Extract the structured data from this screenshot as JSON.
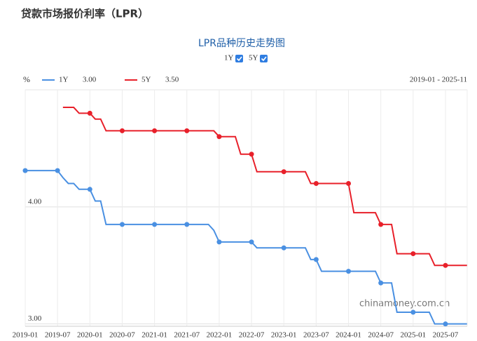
{
  "page_title": "贷款市场报价利率（LPR）",
  "chart_data": {
    "type": "line",
    "title": "LPR品种历史走势图",
    "y_unit": "%",
    "range_label": "2019-01 - 2025-11",
    "watermark": "chinamoney.com.cn",
    "categories": [
      "2019-01",
      null,
      null,
      null,
      null,
      null,
      "2019-07",
      null,
      null,
      null,
      null,
      null,
      "2020-01",
      null,
      null,
      null,
      null,
      null,
      "2020-07",
      null,
      null,
      null,
      null,
      null,
      "2021-01",
      null,
      null,
      null,
      null,
      null,
      "2021-07",
      null,
      null,
      null,
      null,
      null,
      "2022-01",
      null,
      null,
      null,
      null,
      null,
      "2022-07",
      null,
      null,
      null,
      null,
      null,
      "2023-01",
      null,
      null,
      null,
      null,
      null,
      "2023-07",
      null,
      null,
      null,
      null,
      null,
      "2024-01",
      null,
      null,
      null,
      null,
      null,
      "2024-07",
      null,
      null,
      null,
      null,
      null,
      "2025-01",
      null,
      null,
      null,
      null,
      null,
      "2025-07",
      null,
      null,
      null,
      null
    ],
    "series": [
      {
        "name": "1Y",
        "color": "#4a90e2",
        "current": "3.00",
        "values": [
          4.31,
          4.31,
          4.31,
          4.31,
          4.31,
          4.31,
          4.31,
          4.25,
          4.2,
          4.2,
          4.15,
          4.15,
          4.15,
          4.05,
          4.05,
          3.85,
          3.85,
          3.85,
          3.85,
          3.85,
          3.85,
          3.85,
          3.85,
          3.85,
          3.85,
          3.85,
          3.85,
          3.85,
          3.85,
          3.85,
          3.85,
          3.85,
          3.85,
          3.85,
          3.85,
          3.8,
          3.7,
          3.7,
          3.7,
          3.7,
          3.7,
          3.7,
          3.7,
          3.65,
          3.65,
          3.65,
          3.65,
          3.65,
          3.65,
          3.65,
          3.65,
          3.65,
          3.65,
          3.55,
          3.55,
          3.45,
          3.45,
          3.45,
          3.45,
          3.45,
          3.45,
          3.45,
          3.45,
          3.45,
          3.45,
          3.45,
          3.35,
          3.35,
          3.35,
          3.1,
          3.1,
          3.1,
          3.1,
          3.1,
          3.1,
          3.1,
          3.0,
          3.0,
          3.0,
          3.0,
          3.0,
          3.0,
          3.0
        ]
      },
      {
        "name": "5Y",
        "color": "#e8202a",
        "current": "3.50",
        "values": [
          null,
          null,
          null,
          null,
          null,
          null,
          null,
          4.85,
          4.85,
          4.85,
          4.8,
          4.8,
          4.8,
          4.75,
          4.75,
          4.65,
          4.65,
          4.65,
          4.65,
          4.65,
          4.65,
          4.65,
          4.65,
          4.65,
          4.65,
          4.65,
          4.65,
          4.65,
          4.65,
          4.65,
          4.65,
          4.65,
          4.65,
          4.65,
          4.65,
          4.65,
          4.6,
          4.6,
          4.6,
          4.6,
          4.45,
          4.45,
          4.45,
          4.3,
          4.3,
          4.3,
          4.3,
          4.3,
          4.3,
          4.3,
          4.3,
          4.3,
          4.3,
          4.2,
          4.2,
          4.2,
          4.2,
          4.2,
          4.2,
          4.2,
          4.2,
          3.95,
          3.95,
          3.95,
          3.95,
          3.95,
          3.85,
          3.85,
          3.85,
          3.6,
          3.6,
          3.6,
          3.6,
          3.6,
          3.6,
          3.6,
          3.5,
          3.5,
          3.5,
          3.5,
          3.5,
          3.5,
          3.5
        ]
      }
    ],
    "ylim": [
      2.98,
      5.0
    ],
    "yticks": [
      {
        "value": 3,
        "label": "3.00"
      },
      {
        "value": 4,
        "label": "4.00"
      }
    ],
    "grid": true
  }
}
